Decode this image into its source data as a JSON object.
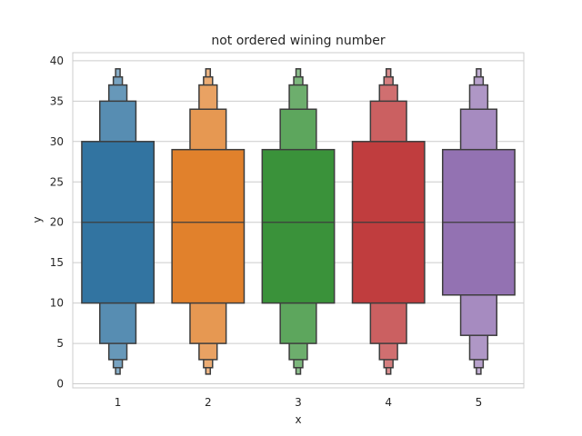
{
  "chart_data": {
    "type": "boxen",
    "title": "not ordered wining number",
    "xlabel": "x",
    "ylabel": "y",
    "categories": [
      "1",
      "2",
      "3",
      "4",
      "5"
    ],
    "ylim": [
      -0.5,
      41.0
    ],
    "yticks": [
      0,
      5,
      10,
      15,
      20,
      25,
      30,
      35,
      40
    ],
    "grid": "horizontal",
    "colors": [
      "#3274a1",
      "#e1812c",
      "#3a923a",
      "#c03d3e",
      "#9372b2"
    ],
    "series": [
      {
        "category": "1",
        "median": 20,
        "boxes": [
          {
            "low": 10,
            "high": 30
          },
          {
            "low": 5,
            "high": 35
          },
          {
            "low": 3,
            "high": 37
          },
          {
            "low": 2,
            "high": 38
          },
          {
            "low": 1.2,
            "high": 39
          }
        ]
      },
      {
        "category": "2",
        "median": 20,
        "boxes": [
          {
            "low": 10,
            "high": 29
          },
          {
            "low": 5,
            "high": 34
          },
          {
            "low": 3,
            "high": 37
          },
          {
            "low": 2,
            "high": 38
          },
          {
            "low": 1.2,
            "high": 39
          }
        ]
      },
      {
        "category": "3",
        "median": 20,
        "boxes": [
          {
            "low": 10,
            "high": 29
          },
          {
            "low": 5,
            "high": 34
          },
          {
            "low": 3,
            "high": 37
          },
          {
            "low": 2,
            "high": 38
          },
          {
            "low": 1.2,
            "high": 39
          }
        ]
      },
      {
        "category": "4",
        "median": 20,
        "boxes": [
          {
            "low": 10,
            "high": 30
          },
          {
            "low": 5,
            "high": 35
          },
          {
            "low": 3,
            "high": 37
          },
          {
            "low": 2,
            "high": 38
          },
          {
            "low": 1.2,
            "high": 39
          }
        ]
      },
      {
        "category": "5",
        "median": 20,
        "boxes": [
          {
            "low": 11,
            "high": 29
          },
          {
            "low": 6,
            "high": 34
          },
          {
            "low": 3,
            "high": 37
          },
          {
            "low": 2,
            "high": 38
          },
          {
            "low": 1.2,
            "high": 39
          }
        ]
      }
    ]
  }
}
